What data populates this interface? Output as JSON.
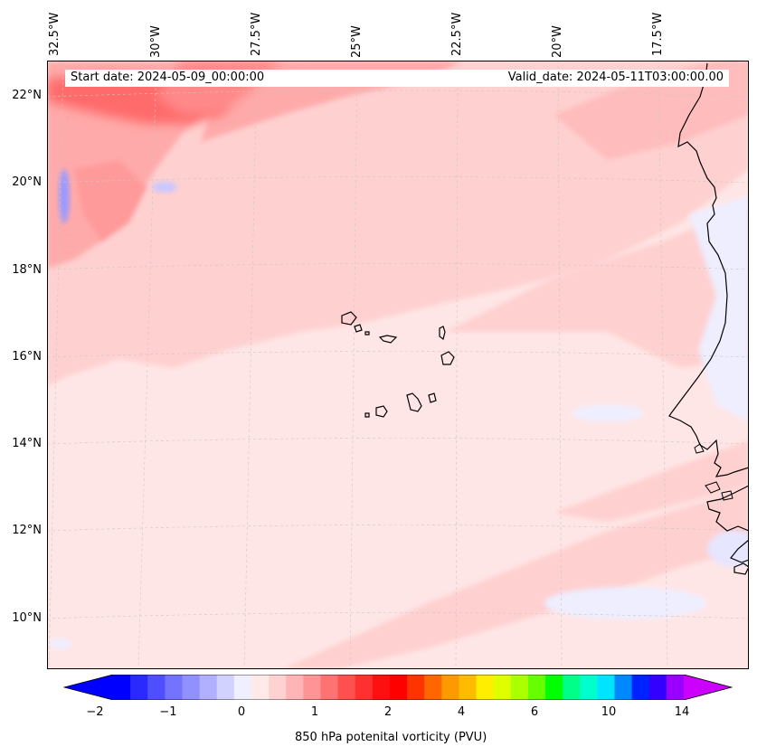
{
  "map": {
    "start_date": "Start date: 2024-05-09_00:00:00",
    "valid_date": "Valid_date: 2024-05-11T03:00:00.00",
    "lon_labels": [
      "32.5°W",
      "30°W",
      "27.5°W",
      "25°W",
      "22.5°W",
      "20°W",
      "17.5°W"
    ],
    "lat_labels": [
      "22°N",
      "20°N",
      "18°N",
      "16°N",
      "14°N",
      "12°N",
      "10°N"
    ]
  },
  "colorbar": {
    "title": "850 hPa potenital vorticity (PVU)",
    "ticks": [
      "−2",
      "−1",
      "0",
      "1",
      "2",
      "4",
      "6",
      "10",
      "14"
    ],
    "colors": [
      "#0000ff",
      "#2a2aff",
      "#4f4fff",
      "#7373ff",
      "#9090ff",
      "#b0b0ff",
      "#d2d2ff",
      "#efefff",
      "#ffe9e9",
      "#ffd2d2",
      "#ffb5b5",
      "#ff9494",
      "#ff7272",
      "#ff5050",
      "#ff3030",
      "#ff1010",
      "#ff0000",
      "#ff3300",
      "#ff6600",
      "#ff9900",
      "#ffbb00",
      "#ffee00",
      "#ddff00",
      "#aaff00",
      "#66ff00",
      "#00ff00",
      "#00ff88",
      "#00ffcc",
      "#00e5ff",
      "#0088ff",
      "#0022ff",
      "#3300ff",
      "#9900ff"
    ],
    "extend_low_color": "#0000ff",
    "extend_high_color": "#cc00ff"
  },
  "colors": {
    "background": "#ffe6e6",
    "light_pink": "#ffd0d0",
    "medium_pink": "#ffaaaa",
    "strong_red": "#ff5a5a",
    "light_blue": "#eeeeff",
    "blue_patch": "#8f8fff",
    "coast": "#000000"
  }
}
